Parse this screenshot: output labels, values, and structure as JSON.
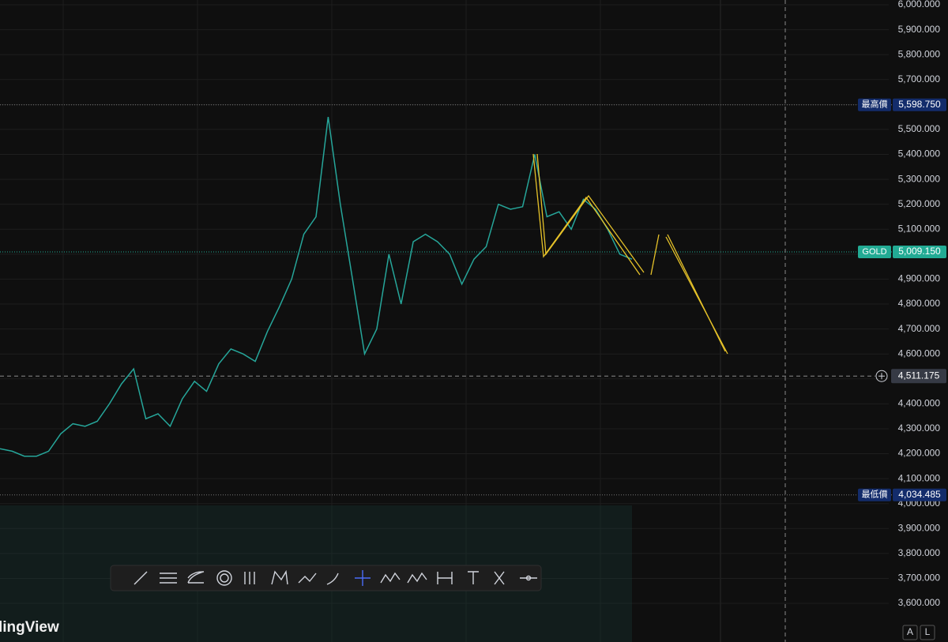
{
  "chart_data": {
    "type": "line",
    "color": "#26a69a",
    "categories": [
      null,
      null,
      null,
      null,
      null,
      null,
      null,
      null,
      null,
      null,
      null,
      null,
      null,
      null,
      null,
      null,
      null,
      null,
      null,
      null,
      null,
      null,
      null,
      null,
      null,
      null,
      null,
      null,
      null,
      null,
      null,
      null,
      null,
      null,
      null,
      null,
      null,
      null,
      null,
      null,
      null,
      null,
      null,
      null,
      null,
      null,
      null,
      null,
      null,
      null,
      null,
      null,
      null
    ],
    "values": [
      4220,
      4210,
      4190,
      4190,
      4210,
      4280,
      4320,
      4310,
      4330,
      4400,
      4480,
      4540,
      4340,
      4360,
      4310,
      4420,
      4490,
      4450,
      4560,
      4620,
      4600,
      4570,
      4690,
      4790,
      4900,
      5080,
      5150,
      5550,
      5200,
      4900,
      4600,
      4700,
      5000,
      4800,
      5050,
      5080,
      5050,
      5000,
      4880,
      4980,
      5030,
      5200,
      5180,
      5190,
      5400,
      5150,
      5170,
      5100,
      5220,
      5180,
      5100,
      5000,
      4980
    ],
    "ylim": [
      3445,
      6019
    ],
    "yticks": [
      {
        "value": 3600,
        "label": "3,600.000"
      },
      {
        "value": 3700,
        "label": "3,700.000"
      },
      {
        "value": 3800,
        "label": "3,800.000"
      },
      {
        "value": 3900,
        "label": "3,900.000"
      },
      {
        "value": 4000,
        "label": "4,000.000"
      },
      {
        "value": 4100,
        "label": "4,100.000"
      },
      {
        "value": 4200,
        "label": "4,200.000"
      },
      {
        "value": 4300,
        "label": "4,300.000"
      },
      {
        "value": 4400,
        "label": "4,400.000"
      },
      {
        "value": 4500,
        "label": "4,500.000"
      },
      {
        "value": 4600,
        "label": "4,600.000"
      },
      {
        "value": 4700,
        "label": "4,700.000"
      },
      {
        "value": 4800,
        "label": "4,800.000"
      },
      {
        "value": 4900,
        "label": "4,900.000"
      },
      {
        "value": 5000,
        "label": "5,000.000"
      },
      {
        "value": 5100,
        "label": "5,100.000"
      },
      {
        "value": 5200,
        "label": "5,200.000"
      },
      {
        "value": 5300,
        "label": "5,300.000"
      },
      {
        "value": 5400,
        "label": "5,400.000"
      },
      {
        "value": 5500,
        "label": "5,500.000"
      },
      {
        "value": 5600,
        "label": "5,600.000"
      },
      {
        "value": 5700,
        "label": "5,700.000"
      },
      {
        "value": 5800,
        "label": "5,800.000"
      },
      {
        "value": 5900,
        "label": "5,900.000"
      },
      {
        "value": 6000,
        "label": "6,000.000"
      }
    ],
    "grid": true,
    "price_labels": [
      {
        "name": "最高價",
        "value": 5598.75,
        "label": "5,598.750",
        "color": "#132c6b"
      },
      {
        "name": "GOLD",
        "value": 5009.15,
        "label": "5,009.150",
        "color": "#22ab94"
      },
      {
        "name": "最低價",
        "value": 4034.485,
        "label": "4,034.485",
        "color": "#132c6b"
      }
    ],
    "crosshair": {
      "value": 4511.175,
      "label": "4,511.175"
    }
  },
  "watermark": "lingView",
  "buttons": [
    "A",
    "L"
  ]
}
